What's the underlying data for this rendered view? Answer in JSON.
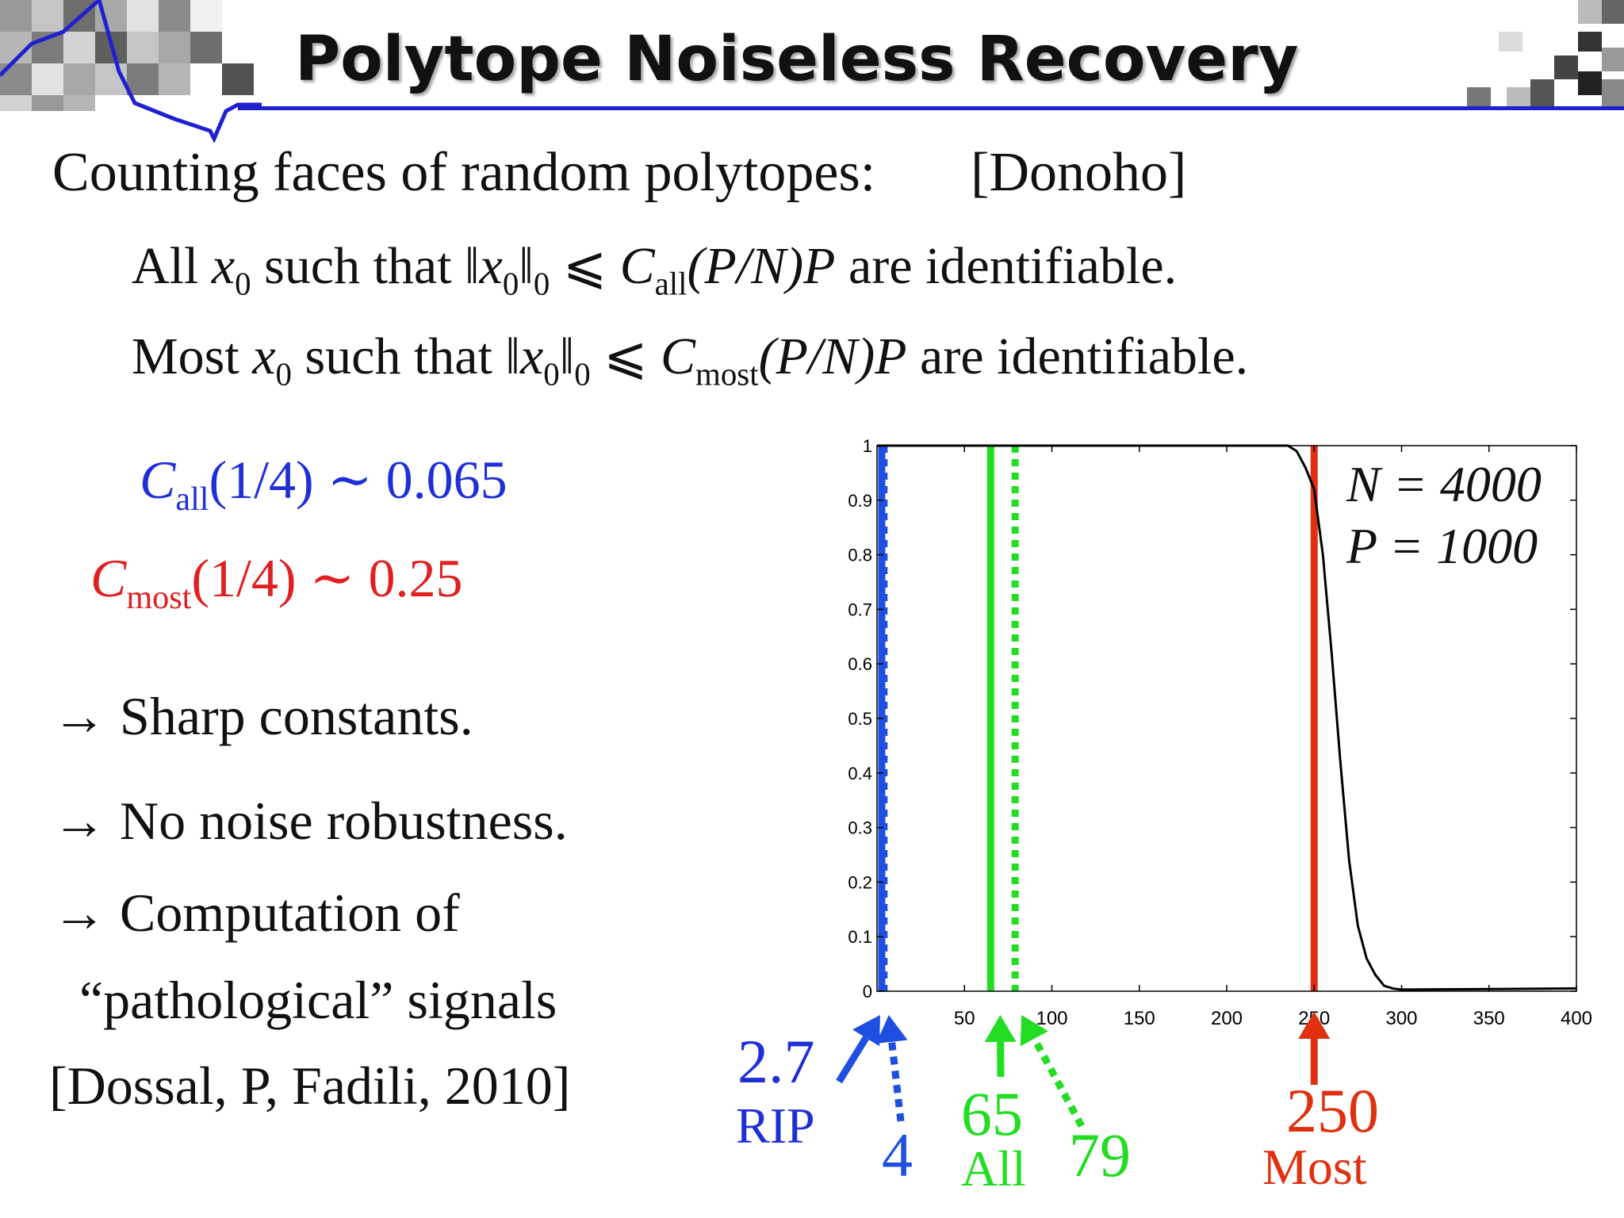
{
  "slide": {
    "title": "Polytope Noiseless Recovery",
    "intro": "Counting faces of random polytopes:",
    "citation": "[Donoho]",
    "line_all": {
      "word": "All",
      "var": "x",
      "var_sub": "0",
      "mid": "such that",
      "norm_open": "‖",
      "norm_close": "‖",
      "norm_sub": "0",
      "leq": "⩽",
      "C": "C",
      "C_sub": "all",
      "tail": "(P/N)P",
      "end": "are identifiable."
    },
    "line_most": {
      "word": "Most",
      "var": "x",
      "var_sub": "0",
      "mid": "such that",
      "norm_open": "‖",
      "norm_close": "‖",
      "norm_sub": "0",
      "leq": "⩽",
      "C": "C",
      "C_sub": "most",
      "tail": "(P/N)P",
      "end": "are identifiable."
    },
    "c_all": {
      "C": "C",
      "sub": "all",
      "arg": "(1/4)",
      "sim": "∼",
      "value": "0.065"
    },
    "c_most": {
      "C": "C",
      "sub": "most",
      "arg": "(1/4)",
      "sim": "∼",
      "value": "0.25"
    },
    "bullets": [
      "→ Sharp constants.",
      "→ No noise robustness.",
      "→ Computation of"
    ],
    "bullet_cont": "“pathological” signals",
    "reference": "[Dossal, P, Fadili, 2010]",
    "colors": {
      "blue": "#1f4fe0",
      "green": "#22dd22",
      "red": "#e03010",
      "title_rule": "#2020c8"
    }
  },
  "chart_data": {
    "type": "line",
    "xlim": [
      0,
      400
    ],
    "ylim": [
      0,
      1
    ],
    "x_ticks": [
      50,
      100,
      150,
      200,
      250,
      300,
      350,
      400
    ],
    "x_tick_labels": [
      "50",
      "100",
      "150",
      "200",
      "250",
      "300",
      "350",
      "400"
    ],
    "y_ticks": [
      0,
      0.1,
      0.2,
      0.3,
      0.4,
      0.5,
      0.6,
      0.7,
      0.8,
      0.9,
      1
    ],
    "y_tick_labels": [
      "0",
      "0.1",
      "0.2",
      "0.3",
      "0.4",
      "0.5",
      "0.6",
      "0.7",
      "0.8",
      "0.9",
      "1"
    ],
    "legend": [
      "N = 4000",
      "P = 1000"
    ],
    "legend_position": "top-right",
    "series": [
      {
        "x": [
          0,
          230,
          235,
          240,
          245,
          250,
          255,
          260,
          265,
          270,
          275,
          280,
          285,
          290,
          295,
          300,
          400
        ],
        "y": [
          1,
          1,
          1,
          0.99,
          0.96,
          0.92,
          0.8,
          0.62,
          0.42,
          0.24,
          0.12,
          0.06,
          0.03,
          0.01,
          0.005,
          0.003,
          0.005
        ]
      }
    ],
    "vlines": [
      {
        "x": 2.7,
        "color": "#1f4fe0",
        "style": "solid",
        "label_value": "2.7",
        "label_text": "RIP"
      },
      {
        "x": 4,
        "color": "#1f4fe0",
        "style": "dotted",
        "label_value": "4",
        "label_text": ""
      },
      {
        "x": 65,
        "color": "#22dd22",
        "style": "solid",
        "label_value": "65",
        "label_text": "All"
      },
      {
        "x": 79,
        "color": "#22dd22",
        "style": "dotted",
        "label_value": "79",
        "label_text": ""
      },
      {
        "x": 250,
        "color": "#e03010",
        "style": "solid",
        "label_value": "250",
        "label_text": "Most"
      }
    ]
  }
}
